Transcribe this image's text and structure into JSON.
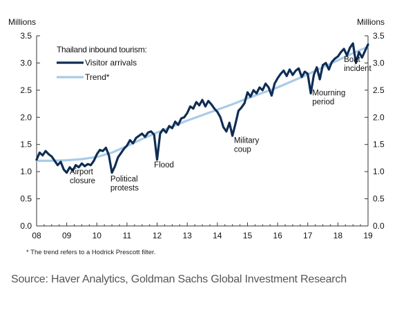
{
  "chart_data": {
    "type": "line",
    "y_unit_left": "Millions",
    "y_unit_right": "Millions",
    "ylim": [
      0,
      3.5
    ],
    "y_ticks": [
      "0.0",
      "0.5",
      "1.0",
      "1.5",
      "2.0",
      "2.5",
      "3.0",
      "3.5"
    ],
    "xlim": [
      2008,
      2019
    ],
    "x_ticks": [
      {
        "label": "08",
        "x": 2008
      },
      {
        "label": "09",
        "x": 2009
      },
      {
        "label": "10",
        "x": 2010
      },
      {
        "label": "11",
        "x": 2011
      },
      {
        "label": "12",
        "x": 2012
      },
      {
        "label": "13",
        "x": 2013
      },
      {
        "label": "14",
        "x": 2014
      },
      {
        "label": "15",
        "x": 2015
      },
      {
        "label": "16",
        "x": 2016
      },
      {
        "label": "17",
        "x": 2017
      },
      {
        "label": "18",
        "x": 2018
      },
      {
        "label": "19",
        "x": 2019
      }
    ],
    "grid": false,
    "legend": {
      "title": "Thailand inbound tourism:",
      "placement": "top-left",
      "entries": [
        "Visitor arrivals",
        "Trend*"
      ]
    },
    "colors": {
      "arrivals": "#0e2d54",
      "trend": "#a9cbe8",
      "axis": "#333333"
    },
    "series": [
      {
        "name": "Visitor arrivals",
        "x": [
          2008.0,
          2008.1,
          2008.2,
          2008.3,
          2008.4,
          2008.5,
          2008.6,
          2008.7,
          2008.8,
          2008.9,
          2009.0,
          2009.1,
          2009.2,
          2009.3,
          2009.4,
          2009.5,
          2009.6,
          2009.7,
          2009.8,
          2009.9,
          2010.0,
          2010.1,
          2010.2,
          2010.3,
          2010.4,
          2010.5,
          2010.6,
          2010.7,
          2010.8,
          2010.9,
          2011.0,
          2011.1,
          2011.2,
          2011.3,
          2011.4,
          2011.5,
          2011.6,
          2011.7,
          2011.8,
          2011.9,
          2012.0,
          2012.1,
          2012.2,
          2012.3,
          2012.4,
          2012.5,
          2012.6,
          2012.7,
          2012.8,
          2012.9,
          2013.0,
          2013.1,
          2013.2,
          2013.3,
          2013.4,
          2013.5,
          2013.6,
          2013.7,
          2013.8,
          2013.9,
          2014.0,
          2014.1,
          2014.2,
          2014.3,
          2014.4,
          2014.5,
          2014.6,
          2014.7,
          2014.8,
          2014.9,
          2015.0,
          2015.1,
          2015.2,
          2015.3,
          2015.4,
          2015.5,
          2015.6,
          2015.7,
          2015.8,
          2015.9,
          2016.0,
          2016.1,
          2016.2,
          2016.3,
          2016.4,
          2016.5,
          2016.6,
          2016.7,
          2016.8,
          2016.9,
          2017.0,
          2017.1,
          2017.2,
          2017.3,
          2017.4,
          2017.5,
          2017.6,
          2017.7,
          2017.8,
          2017.9,
          2018.0,
          2018.1,
          2018.2,
          2018.3,
          2018.4,
          2018.5,
          2018.6,
          2018.7,
          2018.8,
          2018.9,
          2019.0
        ],
        "values": [
          1.22,
          1.35,
          1.3,
          1.38,
          1.32,
          1.28,
          1.2,
          1.12,
          1.18,
          1.04,
          0.98,
          1.08,
          1.02,
          1.12,
          1.08,
          1.15,
          1.1,
          1.14,
          1.12,
          1.2,
          1.32,
          1.4,
          1.38,
          1.44,
          1.3,
          0.98,
          1.1,
          1.26,
          1.34,
          1.42,
          1.48,
          1.58,
          1.52,
          1.62,
          1.66,
          1.7,
          1.64,
          1.72,
          1.74,
          1.68,
          1.22,
          1.7,
          1.78,
          1.72,
          1.84,
          1.8,
          1.92,
          1.86,
          1.98,
          2.0,
          2.08,
          2.2,
          2.16,
          2.28,
          2.22,
          2.32,
          2.2,
          2.3,
          2.24,
          2.16,
          2.1,
          2.0,
          1.82,
          1.74,
          1.9,
          1.66,
          1.88,
          2.12,
          2.18,
          2.26,
          2.46,
          2.38,
          2.5,
          2.44,
          2.55,
          2.5,
          2.62,
          2.55,
          2.4,
          2.62,
          2.72,
          2.8,
          2.86,
          2.76,
          2.88,
          2.78,
          2.86,
          2.9,
          2.74,
          2.84,
          2.8,
          2.44,
          2.78,
          2.92,
          2.7,
          2.96,
          3.0,
          2.88,
          3.02,
          3.08,
          3.12,
          3.2,
          3.26,
          3.14,
          3.28,
          3.36,
          3.0,
          3.2,
          3.1,
          3.22,
          3.34
        ]
      },
      {
        "name": "Trend*",
        "x": [
          2008,
          2008.5,
          2009,
          2009.5,
          2010,
          2010.5,
          2011,
          2011.5,
          2012,
          2012.5,
          2013,
          2013.5,
          2014,
          2014.5,
          2015,
          2015.5,
          2016,
          2016.5,
          2017,
          2017.5,
          2018,
          2018.5,
          2019
        ],
        "values": [
          1.2,
          1.2,
          1.21,
          1.23,
          1.27,
          1.35,
          1.47,
          1.6,
          1.72,
          1.83,
          1.94,
          2.04,
          2.14,
          2.24,
          2.35,
          2.45,
          2.55,
          2.67,
          2.79,
          2.92,
          3.05,
          3.18,
          3.3
        ]
      }
    ],
    "annotations": [
      {
        "lines": [
          "Airport",
          "closure"
        ],
        "x": 2009.1,
        "y": 0.95
      },
      {
        "lines": [
          "Political",
          "protests"
        ],
        "x": 2010.45,
        "y": 0.82
      },
      {
        "lines": [
          "Flood"
        ],
        "x": 2011.9,
        "y": 1.08
      },
      {
        "lines": [
          "Military",
          "coup"
        ],
        "x": 2014.55,
        "y": 1.53
      },
      {
        "lines": [
          "Mourning",
          "period"
        ],
        "x": 2017.15,
        "y": 2.4
      },
      {
        "lines": [
          "Boat",
          "incident"
        ],
        "x": 2018.2,
        "y": 3.02
      }
    ]
  },
  "footnote": "* The trend refers to a Hodrick Prescott filter.",
  "source": "Source: Haver Analytics, Goldman Sachs Global Investment Research"
}
